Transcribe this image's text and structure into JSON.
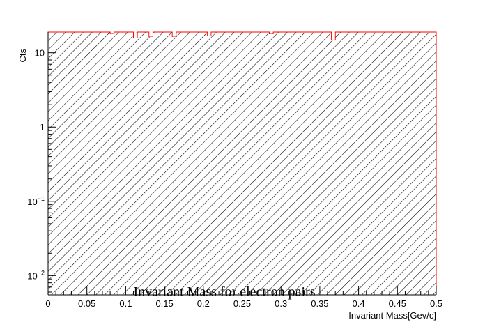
{
  "chart_data": {
    "type": "bar",
    "title": "Invariant Mass for electron pairs",
    "xlabel": "Invariant Mass[Gev/c]",
    "ylabel": "Cts",
    "x_scale": "linear",
    "y_scale": "log",
    "xlim": [
      0,
      0.5
    ],
    "ylim": [
      0.0055,
      19
    ],
    "x_ticks": [
      0,
      0.05,
      0.1,
      0.15,
      0.2,
      0.25,
      0.3,
      0.35,
      0.4,
      0.45,
      0.5
    ],
    "x_tick_labels": [
      "0",
      "0.05",
      "0.1",
      "0.15",
      "0.2",
      "0.25",
      "0.3",
      "0.35",
      "0.4",
      "0.45",
      "0.5"
    ],
    "y_ticks": [
      {
        "value": 10,
        "base": "10",
        "exp": ""
      },
      {
        "value": 1,
        "base": "1",
        "exp": ""
      },
      {
        "value": 0.1,
        "base": "10",
        "exp": "−1"
      },
      {
        "value": 0.01,
        "base": "10",
        "exp": "−2"
      }
    ],
    "bin_width": 0.005,
    "fill_style": "hatched",
    "series": [
      {
        "name": "Invariant Mass",
        "color": "#ff0000",
        "dip_bins": [
          {
            "x": 0.0825,
            "value": 18
          },
          {
            "x": 0.1125,
            "value": 16
          },
          {
            "x": 0.1325,
            "value": 16.5
          },
          {
            "x": 0.1625,
            "value": 16.5
          },
          {
            "x": 0.2075,
            "value": 17
          },
          {
            "x": 0.2875,
            "value": 18
          },
          {
            "x": 0.3675,
            "value": 15
          }
        ]
      }
    ]
  }
}
